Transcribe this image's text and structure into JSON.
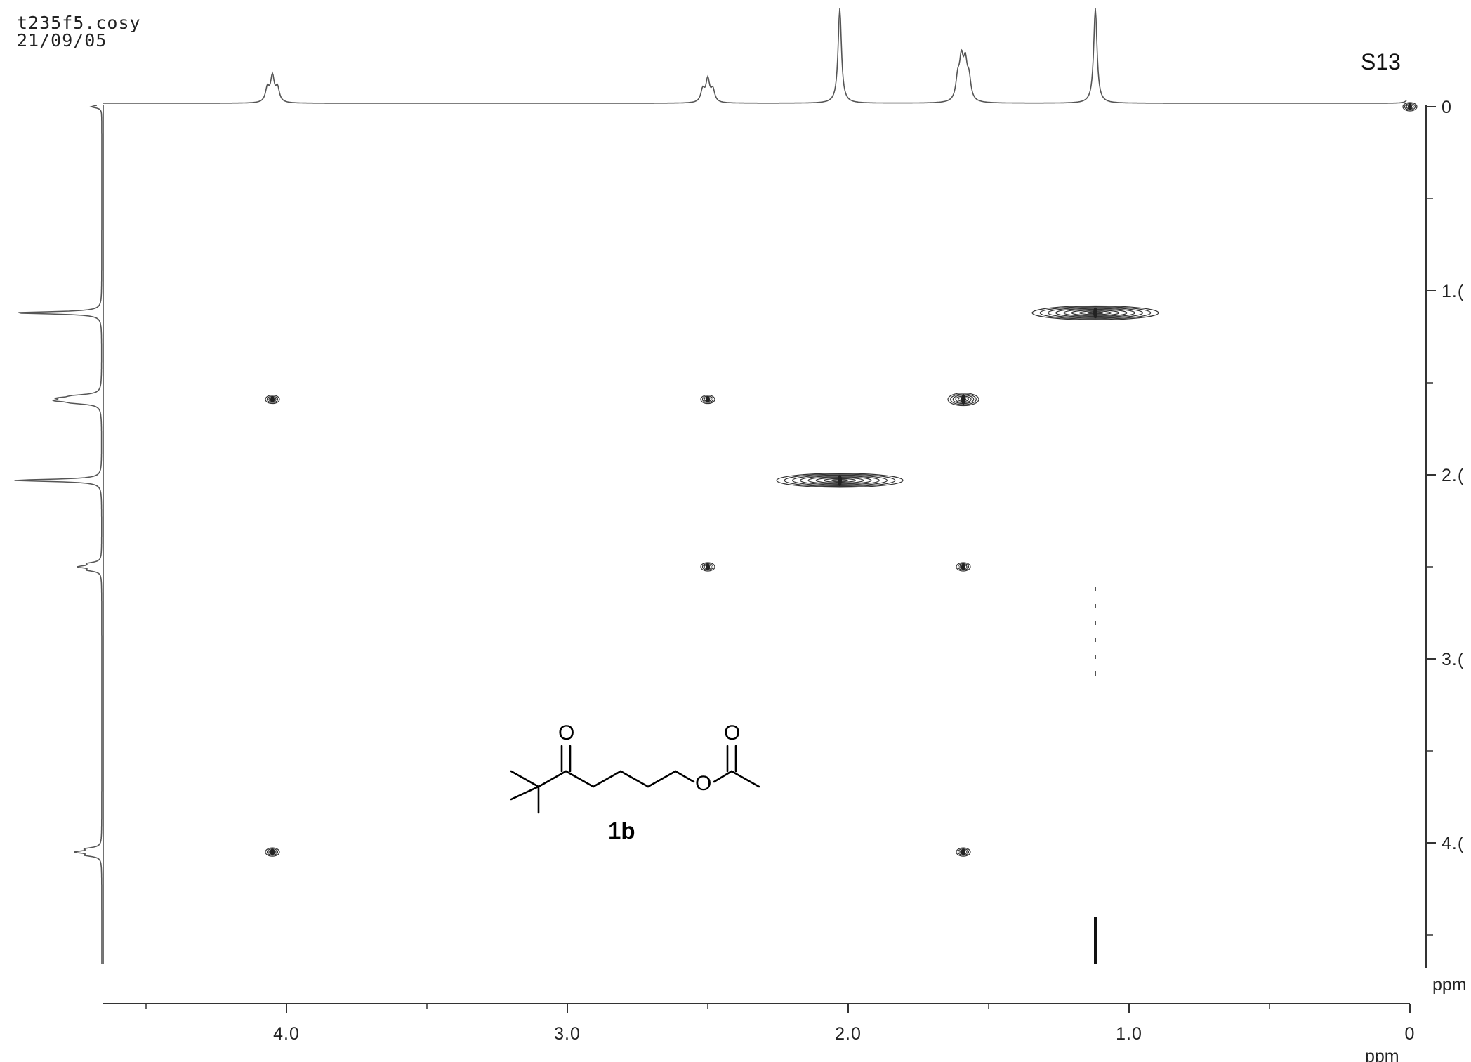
{
  "header": {
    "filename": "t235f5.cosy",
    "date": "21/09/05",
    "page_label": "S13"
  },
  "molecule": {
    "label": "1b",
    "atom_o1": "O",
    "atom_o2": "O",
    "atom_o3": "O"
  },
  "chart_data": {
    "type": "heatmap",
    "kind": "2D COSY NMR spectrum",
    "f2_axis": {
      "unit": "ppm",
      "range": [
        4.65,
        -0.05
      ],
      "major_ticks": [
        4.0,
        3.0,
        2.0,
        1.0,
        0
      ],
      "major_tick_labels": [
        "4.0",
        "3.0",
        "2.0",
        "1.0",
        "0"
      ],
      "minor_ticks": [
        4.5,
        3.5,
        2.5,
        1.5,
        0.5
      ]
    },
    "f1_axis": {
      "unit": "ppm",
      "range": [
        0,
        4.6
      ],
      "major_ticks": [
        0,
        1.0,
        2.0,
        3.0,
        4.0
      ],
      "major_tick_labels": [
        "0",
        "1.(",
        "2.(",
        "3.(",
        "4.("
      ],
      "minor_ticks": [
        0.5,
        1.5,
        2.5,
        3.5,
        4.5
      ]
    },
    "projection_peaks_ppm": [
      {
        "shift": 4.05,
        "height": 0.27,
        "multiplet": "triplet"
      },
      {
        "shift": 2.5,
        "height": 0.24,
        "multiplet": "triplet"
      },
      {
        "shift": 2.03,
        "height": 1.0,
        "multiplet": "singlet"
      },
      {
        "shift": 1.59,
        "height": 0.4,
        "multiplet": "multiplet"
      },
      {
        "shift": 1.12,
        "height": 1.0,
        "multiplet": "singlet"
      },
      {
        "shift": 0.0,
        "height": 0.12,
        "multiplet": "singlet"
      }
    ],
    "cross_peaks": [
      {
        "f2": 0.0,
        "f1": 0.0,
        "type": "diagonal",
        "intensity": "weak"
      },
      {
        "f2": 1.12,
        "f1": 1.12,
        "type": "diagonal",
        "intensity": "strong"
      },
      {
        "f2": 1.59,
        "f1": 1.59,
        "type": "diagonal",
        "intensity": "medium"
      },
      {
        "f2": 2.03,
        "f1": 2.03,
        "type": "diagonal",
        "intensity": "strong"
      },
      {
        "f2": 2.5,
        "f1": 2.5,
        "type": "diagonal",
        "intensity": "weak"
      },
      {
        "f2": 4.05,
        "f1": 4.05,
        "type": "diagonal",
        "intensity": "weak"
      },
      {
        "f2": 4.05,
        "f1": 1.59,
        "type": "off-diagonal",
        "intensity": "weak"
      },
      {
        "f2": 2.5,
        "f1": 1.59,
        "type": "off-diagonal",
        "intensity": "weak"
      },
      {
        "f2": 1.59,
        "f1": 2.5,
        "type": "off-diagonal",
        "intensity": "weak"
      },
      {
        "f2": 1.59,
        "f1": 4.05,
        "type": "off-diagonal",
        "intensity": "weak"
      }
    ],
    "t1_noise_streak_f2": 1.12,
    "grid": false,
    "legend": "none"
  }
}
